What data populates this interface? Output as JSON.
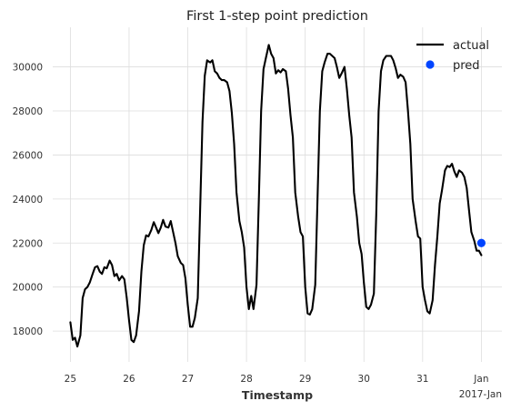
{
  "chart_data": {
    "type": "line",
    "title": "First 1-step point prediction",
    "xlabel": "Timestamp",
    "ylabel": "",
    "x_unit": "days (Dec 2016, Jan = Jan 1 2017)",
    "xlim": [
      24.7,
      32.35
    ],
    "ylim": [
      16600,
      31800
    ],
    "x_ticks": [
      {
        "x": 25,
        "label": "25"
      },
      {
        "x": 26,
        "label": "26"
      },
      {
        "x": 27,
        "label": "27"
      },
      {
        "x": 28,
        "label": "28"
      },
      {
        "x": 29,
        "label": "29"
      },
      {
        "x": 30,
        "label": "30"
      },
      {
        "x": 31,
        "label": "31"
      },
      {
        "x": 32,
        "label": "Jan"
      }
    ],
    "x_offset_label": "2017-Jan",
    "y_ticks": [
      18000,
      20000,
      22000,
      24000,
      26000,
      28000,
      30000
    ],
    "y_tick_labels": [
      "18000",
      "20000",
      "22000",
      "24000",
      "26000",
      "28000",
      "30000"
    ],
    "grid": true,
    "legend_position": "top-right",
    "series": [
      {
        "name": "actual",
        "color": "#000000",
        "style": "line",
        "x": [
          25.0,
          25.04,
          25.08,
          25.12,
          25.17,
          25.21,
          25.25,
          25.29,
          25.33,
          25.38,
          25.42,
          25.46,
          25.5,
          25.54,
          25.58,
          25.62,
          25.67,
          25.71,
          25.75,
          25.79,
          25.83,
          25.88,
          25.92,
          25.96,
          26.0,
          26.04,
          26.08,
          26.12,
          26.17,
          26.21,
          26.25,
          26.29,
          26.33,
          26.38,
          26.42,
          26.46,
          26.5,
          26.54,
          26.58,
          26.62,
          26.67,
          26.71,
          26.75,
          26.79,
          26.83,
          26.88,
          26.92,
          26.96,
          27.0,
          27.04,
          27.08,
          27.12,
          27.17,
          27.21,
          27.25,
          27.29,
          27.33,
          27.38,
          27.42,
          27.46,
          27.5,
          27.54,
          27.58,
          27.62,
          27.67,
          27.71,
          27.75,
          27.79,
          27.83,
          27.88,
          27.92,
          27.96,
          28.0,
          28.04,
          28.08,
          28.12,
          28.17,
          28.21,
          28.25,
          28.29,
          28.33,
          28.38,
          28.42,
          28.46,
          28.5,
          28.54,
          28.58,
          28.62,
          28.67,
          28.71,
          28.75,
          28.79,
          28.83,
          28.88,
          28.92,
          28.96,
          29.0,
          29.04,
          29.08,
          29.12,
          29.17,
          29.21,
          29.25,
          29.29,
          29.33,
          29.38,
          29.42,
          29.46,
          29.5,
          29.54,
          29.58,
          29.62,
          29.67,
          29.71,
          29.75,
          29.79,
          29.83,
          29.88,
          29.92,
          29.96,
          30.0,
          30.04,
          30.08,
          30.12,
          30.17,
          30.21,
          30.25,
          30.29,
          30.33,
          30.38,
          30.42,
          30.46,
          30.5,
          30.54,
          30.58,
          30.62,
          30.67,
          30.71,
          30.75,
          30.79,
          30.83,
          30.88,
          30.92,
          30.96,
          31.0,
          31.04,
          31.08,
          31.12,
          31.17,
          31.21,
          31.25,
          31.29,
          31.33,
          31.38,
          31.42,
          31.46,
          31.5,
          31.54,
          31.58,
          31.62,
          31.67,
          31.71,
          31.75,
          31.79,
          31.83,
          31.88,
          31.92,
          31.96,
          32.0
        ],
        "y": [
          18400,
          17600,
          17700,
          17300,
          17800,
          19500,
          19900,
          20000,
          20200,
          20600,
          20900,
          20950,
          20700,
          20600,
          20900,
          20850,
          21200,
          21000,
          20500,
          20600,
          20300,
          20500,
          20350,
          19500,
          18500,
          17600,
          17500,
          17800,
          18900,
          20700,
          21900,
          22350,
          22300,
          22600,
          22950,
          22700,
          22450,
          22700,
          23050,
          22750,
          22700,
          23000,
          22500,
          22000,
          21400,
          21100,
          21000,
          20400,
          19200,
          18200,
          18200,
          18600,
          19500,
          23500,
          27500,
          29600,
          30300,
          30200,
          30300,
          29800,
          29700,
          29500,
          29400,
          29400,
          29300,
          28900,
          27900,
          26500,
          24300,
          23000,
          22500,
          21800,
          20000,
          19000,
          19600,
          19000,
          20100,
          24000,
          28000,
          29900,
          30400,
          31000,
          30600,
          30400,
          29700,
          29850,
          29750,
          29900,
          29800,
          29000,
          27800,
          26800,
          24300,
          23200,
          22500,
          22300,
          20000,
          18800,
          18750,
          19000,
          20100,
          24000,
          28000,
          29800,
          30200,
          30600,
          30600,
          30500,
          30400,
          30000,
          29500,
          29700,
          30000,
          29000,
          27800,
          26800,
          24300,
          23200,
          22000,
          21500,
          20200,
          19100,
          19000,
          19200,
          19700,
          23300,
          28000,
          29800,
          30300,
          30500,
          30500,
          30500,
          30300,
          29950,
          29500,
          29650,
          29550,
          29300,
          28000,
          26500,
          24000,
          23000,
          22300,
          22200,
          20000,
          19400,
          18900,
          18800,
          19400,
          21000,
          22300,
          23800,
          24400,
          25300,
          25500,
          25450,
          25600,
          25250,
          25000,
          25300,
          25200,
          25000,
          24500,
          23500,
          22500,
          22100,
          21650,
          21650,
          21450
        ]
      },
      {
        "name": "pred",
        "color": "#0044ff",
        "style": "marker",
        "x": [
          32.0
        ],
        "y": [
          22000
        ]
      }
    ]
  }
}
